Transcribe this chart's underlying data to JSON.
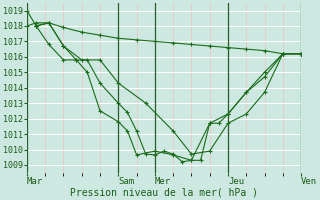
{
  "bg_color": "#cce8e0",
  "grid_color_h": "#ffffff",
  "grid_color_v_minor": "#f0c0c0",
  "line_color": "#1a6b1a",
  "marker_color": "#1a6b1a",
  "xlabel": "Pression niveau de la mer( hPa )",
  "ylim": [
    1008.5,
    1019.5
  ],
  "yticks": [
    1009,
    1010,
    1011,
    1012,
    1013,
    1014,
    1015,
    1016,
    1017,
    1018,
    1019
  ],
  "xtick_labels": [
    "Mar",
    "Sam",
    "Mer",
    "Jeu",
    "Ven"
  ],
  "day_sep_positions": [
    0.0,
    5.0,
    7.0,
    11.0,
    15.0
  ],
  "xlim": [
    0,
    15.0
  ],
  "num_minor_x": 15,
  "series": [
    {
      "x": [
        0.0,
        0.5,
        1.2,
        2.0,
        3.0,
        4.0,
        5.0,
        6.0,
        7.0,
        8.0,
        9.0,
        10.0,
        11.0,
        12.0,
        13.0,
        14.0,
        15.0
      ],
      "y": [
        1018.0,
        1018.2,
        1018.2,
        1017.9,
        1017.6,
        1017.4,
        1017.2,
        1017.1,
        1017.0,
        1016.9,
        1016.8,
        1016.7,
        1016.6,
        1016.5,
        1016.4,
        1016.2,
        1016.2
      ]
    },
    {
      "x": [
        0.5,
        1.2,
        2.0,
        3.0,
        4.0,
        5.0,
        6.5,
        8.0,
        9.0,
        10.0,
        11.0,
        12.0,
        13.0,
        14.0,
        15.0
      ],
      "y": [
        1018.0,
        1018.2,
        1016.7,
        1015.8,
        1015.8,
        1014.3,
        1013.0,
        1011.2,
        1009.7,
        1009.9,
        1011.7,
        1012.3,
        1013.7,
        1016.2,
        1016.2
      ]
    },
    {
      "x": [
        0.0,
        0.5,
        1.2,
        2.0,
        2.7,
        3.3,
        4.0,
        5.0,
        5.5,
        6.0,
        6.5,
        7.0,
        7.5,
        8.0,
        8.5,
        9.0,
        9.5,
        10.0,
        11.0,
        12.0,
        13.0,
        14.0,
        15.0
      ],
      "y": [
        1019.0,
        1018.0,
        1018.2,
        1016.7,
        1015.8,
        1015.8,
        1014.3,
        1013.0,
        1012.4,
        1011.2,
        1009.7,
        1009.65,
        1009.9,
        1009.7,
        1009.2,
        1009.3,
        1009.3,
        1011.7,
        1012.3,
        1013.7,
        1014.7,
        1016.2,
        1016.2
      ]
    },
    {
      "x": [
        0.5,
        1.2,
        2.0,
        2.7,
        3.3,
        4.0,
        5.0,
        5.5,
        6.0,
        7.0,
        8.0,
        9.0,
        10.0,
        10.5,
        11.0,
        12.0,
        13.0,
        14.0,
        15.0
      ],
      "y": [
        1018.0,
        1016.8,
        1015.8,
        1015.8,
        1015.0,
        1012.5,
        1011.8,
        1011.2,
        1009.65,
        1009.9,
        1009.65,
        1009.3,
        1011.7,
        1011.7,
        1012.3,
        1013.7,
        1015.0,
        1016.2,
        1016.2
      ]
    }
  ]
}
